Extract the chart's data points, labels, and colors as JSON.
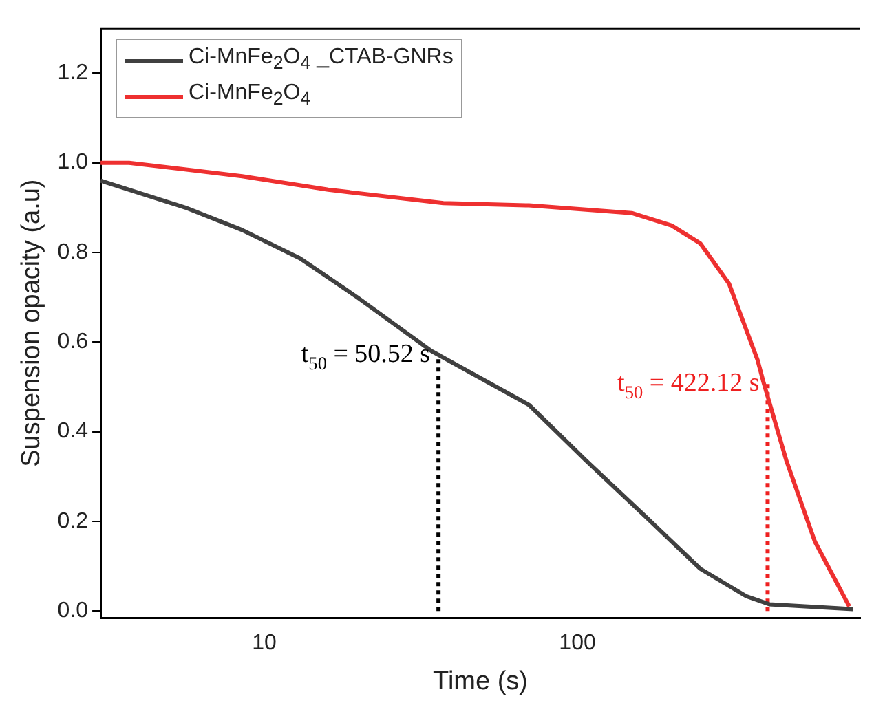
{
  "chart_data": {
    "type": "line",
    "xlabel": "Time (s)",
    "ylabel": "Suspension opacity (a.u)",
    "log": "x",
    "xlim": [
      3,
      800
    ],
    "xticks": [
      10,
      100
    ],
    "ylim": [
      -0.015,
      1.3
    ],
    "yticks": [
      {
        "value": 0,
        "label": "0.0"
      },
      {
        "value": 0.2,
        "label": "0.2"
      },
      {
        "value": 0.4,
        "label": "0.4"
      },
      {
        "value": 0.6,
        "label": "0.6"
      },
      {
        "value": 0.8,
        "label": "0.8"
      },
      {
        "value": 1,
        "label": "1.0"
      },
      {
        "value": 1.2,
        "label": "1.2"
      }
    ],
    "grid": false,
    "legend": "top left",
    "marker": "none",
    "series": [
      {
        "name": "Ci-MnFe$_{2}$O$_{4}$ _CTAB-GNRs",
        "color": "#404040",
        "x": [
          3,
          5.6,
          8.5,
          13,
          19.8,
          34.2,
          70,
          106,
          162,
          247,
          346,
          410,
          678,
          760
        ],
        "values": [
          0.96,
          0.9,
          0.85,
          0.787,
          0.7,
          0.58,
          0.46,
          0.337,
          0.216,
          0.094,
          0.033,
          0.015,
          0.006,
          0.004
        ]
      },
      {
        "name": "Ci-MnFe$_{2}$O$_{4}$",
        "color": "#ee3030",
        "x": [
          3,
          3.7,
          8.5,
          16,
          37.3,
          70,
          149,
          200,
          247,
          305,
          376,
          393,
          464,
          573,
          738
        ],
        "values": [
          1.0,
          1.0,
          0.97,
          0.94,
          0.91,
          0.905,
          0.888,
          0.86,
          0.82,
          0.73,
          0.56,
          0.51,
          0.337,
          0.155,
          0.01
        ]
      },
      {
        "color": "#000000",
        "line_style": "dotted",
        "x": [
          36,
          36
        ],
        "values": [
          0,
          0.575
        ]
      },
      {
        "color": "#ee2020",
        "line_style": "dotted",
        "x": [
          405,
          405
        ],
        "values": [
          0,
          0.51
        ]
      }
    ],
    "annotations": [
      {
        "text": "t$_{50}$ = 50.52 s",
        "x": 36,
        "y": 0.575
      },
      {
        "text": "t$_{50}$ = 422.12 s",
        "x": 405,
        "y": 0.51
      }
    ]
  }
}
